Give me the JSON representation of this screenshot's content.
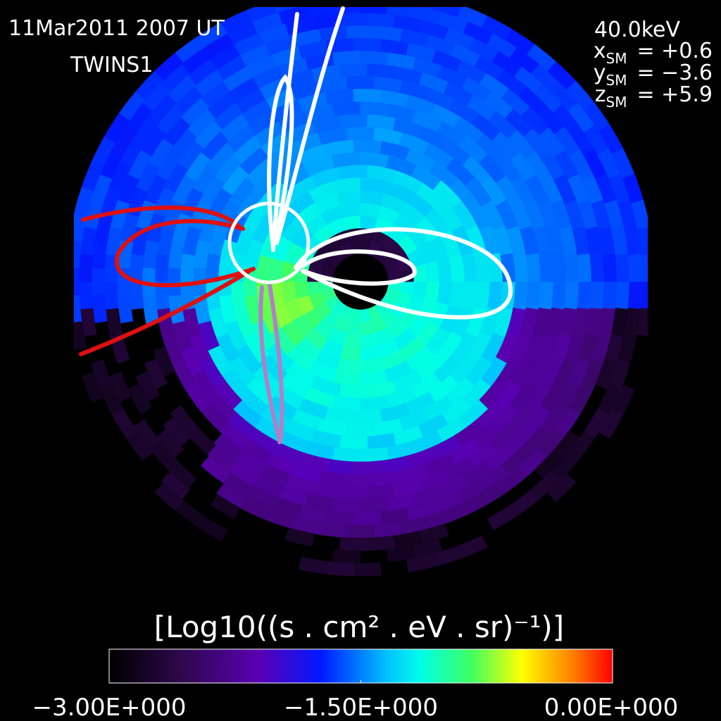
{
  "header": {
    "date": "11Mar2011 2007 UT",
    "spacecraft": "TWINS1",
    "energy": "40.0keV",
    "coordinates": [
      {
        "axis": "x",
        "frame": "SM",
        "value": "= +0.6"
      },
      {
        "axis": "y",
        "frame": "SM",
        "value": "= −3.6"
      },
      {
        "axis": "z",
        "frame": "SM",
        "value": "= +5.9"
      }
    ]
  },
  "colorbar": {
    "title": "[Log10((s . cm² . eV . sr)⁻¹)]",
    "lim": [
      -3,
      0
    ],
    "ticks": [
      {
        "value": -3,
        "label": "−3.00E+000"
      },
      {
        "value": -1.5,
        "label": "−1.50E+000"
      },
      {
        "value": 0,
        "label": "0.00E+000"
      }
    ]
  }
}
